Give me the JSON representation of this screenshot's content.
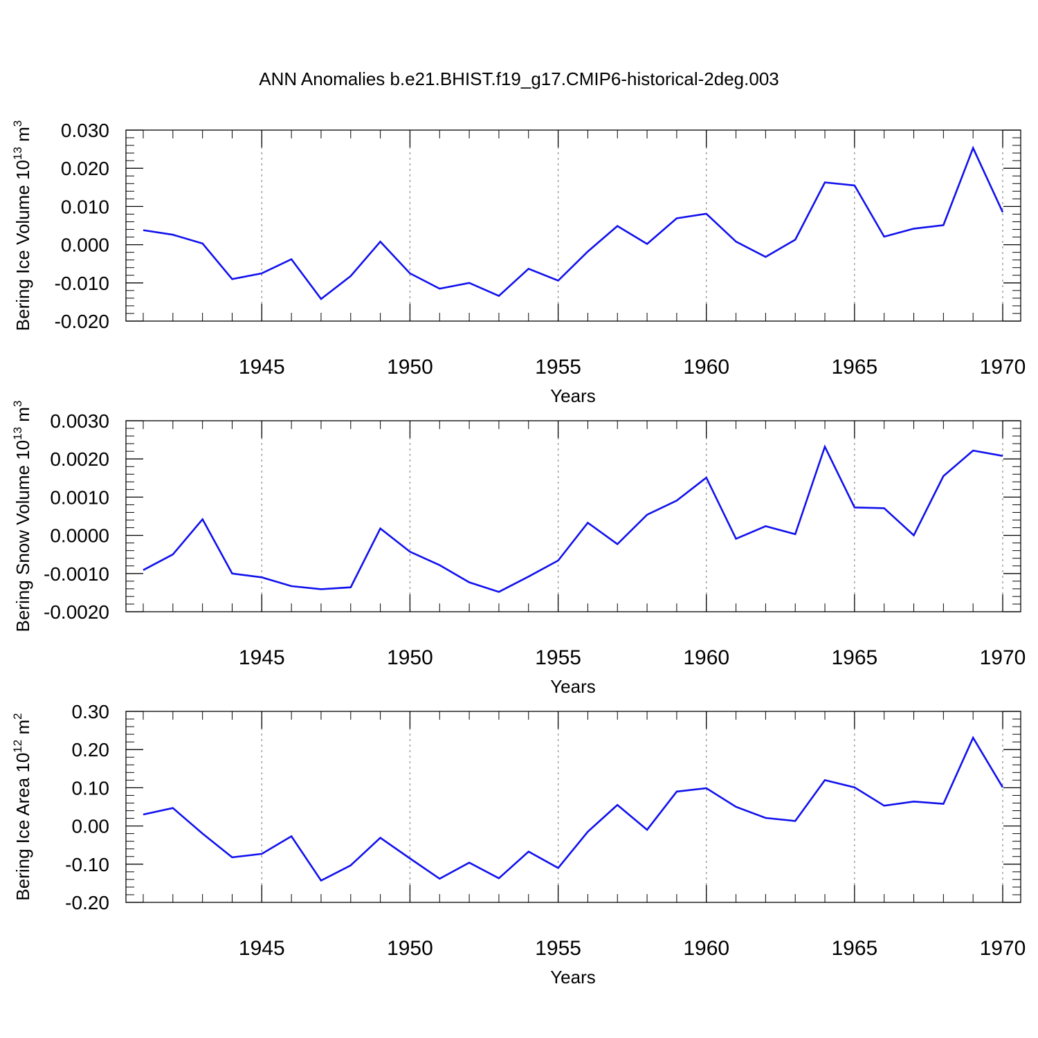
{
  "title": "ANN Anomalies b.e21.BHIST.f19_g17.CMIP6-historical-2deg.003",
  "colors": {
    "line": "#1010ee",
    "axis": "#000000",
    "grid": "#888888"
  },
  "chart_data": [
    {
      "type": "line",
      "ylabel": "Bering Ice Volume 10",
      "ylabel_sup": "13",
      "ylabel_unit": " m",
      "ylabel_unit_sup": "3",
      "xlabel": "Years",
      "xlim": [
        1941,
        1970
      ],
      "ylim": [
        -0.02,
        0.03
      ],
      "xticks": [
        "1945",
        "1950",
        "1955",
        "1960",
        "1965",
        "1970"
      ],
      "yticks": [
        "0.030",
        "0.020",
        "0.010",
        "0.000",
        "-0.010",
        "-0.020"
      ],
      "grid": "vertical dotted at major x ticks",
      "series": [
        {
          "x": [
            1941,
            1942,
            1943,
            1944,
            1945,
            1946,
            1947,
            1948,
            1949,
            1950,
            1951,
            1952,
            1953,
            1954,
            1955,
            1956,
            1957,
            1958,
            1959,
            1960,
            1961,
            1962,
            1963,
            1964,
            1965,
            1966,
            1967,
            1968,
            1969,
            1970
          ],
          "values": [
            0.0038,
            0.0026,
            0.0003,
            -0.009,
            -0.0075,
            -0.0038,
            -0.0142,
            -0.0082,
            0.0008,
            -0.0075,
            -0.0115,
            -0.01,
            -0.0134,
            -0.0063,
            -0.0094,
            -0.0018,
            0.0049,
            0.0002,
            0.0069,
            0.0081,
            0.0008,
            -0.0032,
            0.0013,
            0.0163,
            0.0155,
            0.0021,
            0.0042,
            0.0051,
            0.0253,
            0.0085
          ]
        }
      ]
    },
    {
      "type": "line",
      "ylabel": "Bering Snow Volume 10",
      "ylabel_sup": "13",
      "ylabel_unit": " m",
      "ylabel_unit_sup": "3",
      "xlabel": "Years",
      "xlim": [
        1941,
        1970
      ],
      "ylim": [
        -0.002,
        0.003
      ],
      "xticks": [
        "1945",
        "1950",
        "1955",
        "1960",
        "1965",
        "1970"
      ],
      "yticks": [
        "0.0030",
        "0.0020",
        "0.0010",
        "0.0000",
        "-0.0010",
        "-0.0020"
      ],
      "grid": "vertical dotted at major x ticks",
      "series": [
        {
          "x": [
            1941,
            1942,
            1943,
            1944,
            1945,
            1946,
            1947,
            1948,
            1949,
            1950,
            1951,
            1952,
            1953,
            1954,
            1955,
            1956,
            1957,
            1958,
            1959,
            1960,
            1961,
            1962,
            1963,
            1964,
            1965,
            1966,
            1967,
            1968,
            1969,
            1970
          ],
          "values": [
            -0.00091,
            -0.0005,
            0.00042,
            -0.001,
            -0.0011,
            -0.00133,
            -0.00141,
            -0.00136,
            0.00018,
            -0.00043,
            -0.00078,
            -0.00123,
            -0.00148,
            -0.00108,
            -0.00066,
            0.00033,
            -0.00023,
            0.00054,
            0.00091,
            0.00151,
            -9e-05,
            0.00024,
            3e-05,
            0.00232,
            0.00073,
            0.00071,
            0.0,
            0.00155,
            0.00222,
            0.00208
          ]
        }
      ]
    },
    {
      "type": "line",
      "ylabel": "Bering Ice Area 10",
      "ylabel_sup": "12",
      "ylabel_unit": " m",
      "ylabel_unit_sup": "2",
      "xlabel": "Years",
      "xlim": [
        1941,
        1970
      ],
      "ylim": [
        -0.2,
        0.3
      ],
      "xticks": [
        "1945",
        "1950",
        "1955",
        "1960",
        "1965",
        "1970"
      ],
      "yticks": [
        "0.30",
        "0.20",
        "0.10",
        "0.00",
        "-0.10",
        "-0.20"
      ],
      "grid": "vertical dotted at major x ticks",
      "series": [
        {
          "x": [
            1941,
            1942,
            1943,
            1944,
            1945,
            1946,
            1947,
            1948,
            1949,
            1950,
            1951,
            1952,
            1953,
            1954,
            1955,
            1956,
            1957,
            1958,
            1959,
            1960,
            1961,
            1962,
            1963,
            1964,
            1965,
            1966,
            1967,
            1968,
            1969,
            1970
          ],
          "values": [
            0.03,
            0.047,
            -0.02,
            -0.082,
            -0.073,
            -0.027,
            -0.143,
            -0.103,
            -0.031,
            -0.085,
            -0.138,
            -0.096,
            -0.137,
            -0.067,
            -0.11,
            -0.015,
            0.055,
            -0.01,
            0.09,
            0.099,
            0.05,
            0.021,
            0.013,
            0.12,
            0.101,
            0.053,
            0.064,
            0.058,
            0.231,
            0.101
          ]
        }
      ]
    }
  ]
}
